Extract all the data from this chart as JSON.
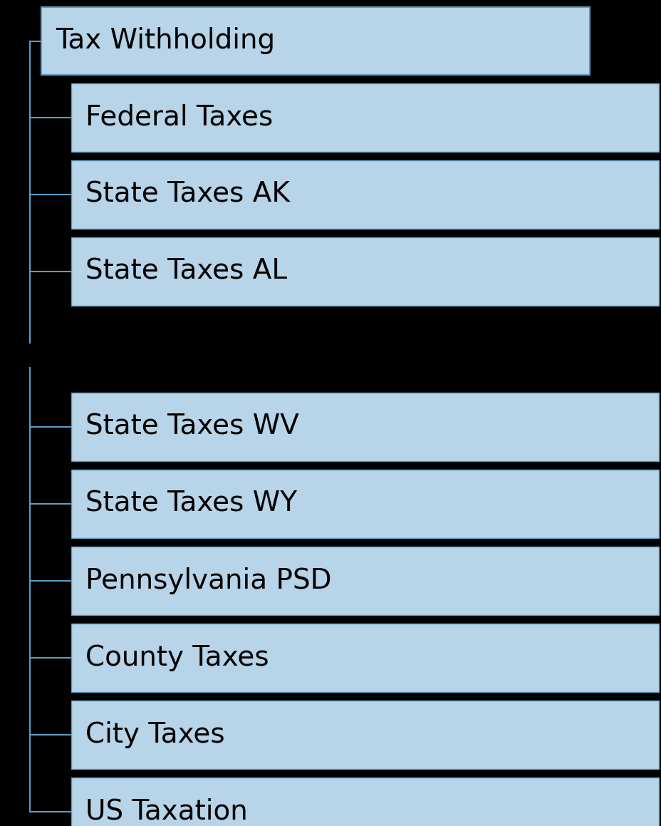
{
  "background_color": "#000000",
  "box_color": "#b8d4e8",
  "box_border_color": "#5a9ec9",
  "text_color": "#000000",
  "connector_color": "#5a9ec9",
  "root": "Tax Withholding",
  "children": [
    "Federal Taxes",
    "State Taxes AK",
    "State Taxes AL",
    "State Taxes WV",
    "State Taxes WY",
    "Pennsylvania PSD",
    "County Taxes",
    "City Taxes",
    "US Taxation"
  ],
  "fig_width": 9.29,
  "fig_height": 11.59,
  "font_size": 28
}
